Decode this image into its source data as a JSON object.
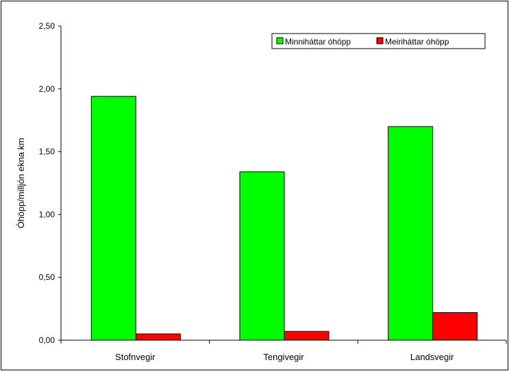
{
  "chart_data": {
    "type": "bar",
    "title": "",
    "xlabel": "",
    "ylabel": "Óhöpp/milljón ekna km",
    "ylim": [
      0,
      2.5
    ],
    "yticks": [
      "0,00",
      "0,50",
      "1,00",
      "1,50",
      "2,00",
      "2,50"
    ],
    "ytick_values": [
      0,
      0.5,
      1.0,
      1.5,
      2.0,
      2.5
    ],
    "categories": [
      "Stofnvegir",
      "Tengivegir",
      "Landsvegir"
    ],
    "series": [
      {
        "name": "Minniháttar óhöpp",
        "color": "#00ff00",
        "values": [
          1.94,
          1.34,
          1.7
        ]
      },
      {
        "name": "Meiriháttar óhöpp",
        "color": "#ff0000",
        "values": [
          0.05,
          0.07,
          0.22
        ]
      }
    ],
    "grid": false,
    "legend_position": "top-right"
  }
}
